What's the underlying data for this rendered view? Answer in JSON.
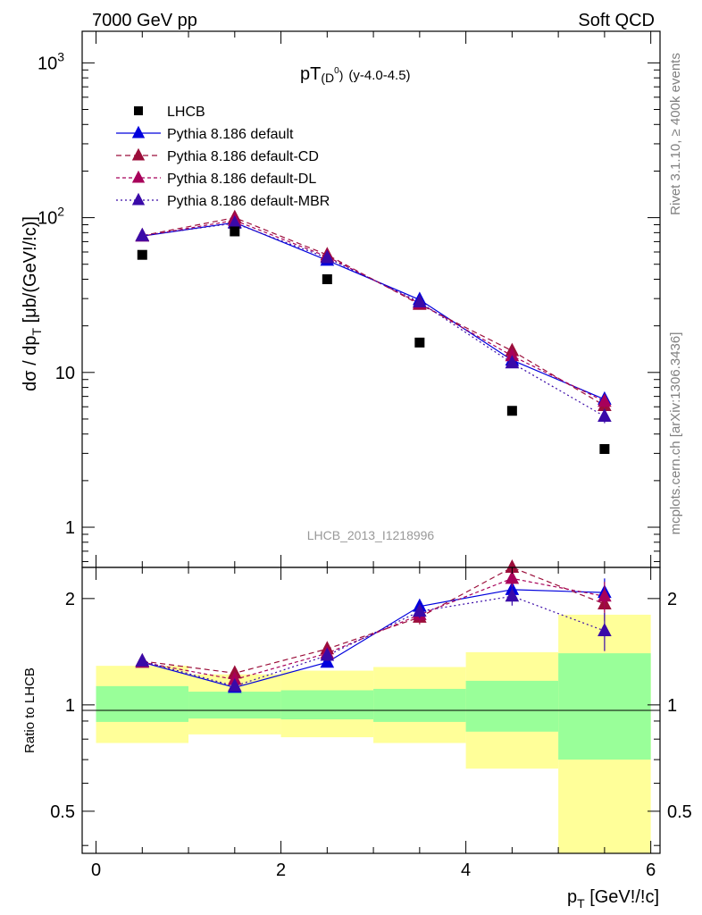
{
  "header": {
    "left": "7000 GeV pp",
    "right": "Soft QCD"
  },
  "side_labels": {
    "rivet": "Rivet 3.1.10, ≥ 400k events",
    "mcplots": "mcplots.cern.ch [arXiv:1306.3436]"
  },
  "watermark": "LHCB_2013_I1218996",
  "chart_data": [
    {
      "type": "scatter",
      "panel": "main",
      "title": "pT(D⁰) (y-4.0-4.5)",
      "title_main": "pT",
      "title_paren_open": "(D",
      "title_sup": "0",
      "title_paren_close": ")",
      "title_sub": "(y-4.0-4.5)",
      "ylabel": "dσ / dp_T [μb/(GeV!/!c)]",
      "ylabel_main": "dσ / dp",
      "ylabel_sub": "T",
      "ylabel_units": " [μb/(GeV!/!c)]",
      "yscale": "log",
      "ylim": [
        0.55,
        1600
      ],
      "xlim": [
        -0.15,
        6.1
      ],
      "y_ticks": [
        {
          "value": 1,
          "label": "1"
        },
        {
          "value": 10,
          "label": "10"
        },
        {
          "value": 100,
          "label": "10",
          "sup": "2"
        },
        {
          "value": 1000,
          "label": "10",
          "sup": "3"
        }
      ],
      "x": [
        0.5,
        1.5,
        2.5,
        3.5,
        4.5,
        5.5
      ],
      "data": {
        "name": "LHCB",
        "values": [
          57.5,
          81.5,
          40.0,
          15.6,
          5.65,
          3.2
        ]
      },
      "series": [
        {
          "name": "Pythia 8.186 default",
          "color": "#0000dd",
          "dash": "",
          "values": [
            76,
            93,
            53,
            29.5,
            12.0,
            6.7
          ],
          "errors": [
            1.5,
            2,
            1.5,
            1,
            0.8,
            0.6
          ]
        },
        {
          "name": "Pythia 8.186 default-CD",
          "color": "#9b0e3a",
          "dash": "6,4",
          "values": [
            76.5,
            100,
            57.5,
            27.5,
            13.8,
            6.1
          ],
          "errors": [
            1.5,
            2,
            1.5,
            1,
            0.9,
            0.6
          ]
        },
        {
          "name": "Pythia 8.186 default-DL",
          "color": "#a8005a",
          "dash": "4,3",
          "values": [
            76,
            96,
            56,
            28.0,
            12.8,
            6.5
          ],
          "errors": [
            1.5,
            2,
            1.5,
            1,
            0.9,
            0.6
          ]
        },
        {
          "name": "Pythia 8.186 default-MBR",
          "color": "#3a0aa8",
          "dash": "2,3",
          "values": [
            76.5,
            92,
            55,
            28.5,
            11.5,
            5.2
          ],
          "errors": [
            1.5,
            2,
            1.5,
            1,
            0.8,
            0.5
          ]
        }
      ],
      "legend_position": "top-left"
    },
    {
      "type": "scatter",
      "panel": "ratio",
      "ylabel": "Ratio to LHCB",
      "xlabel": "p_T [GeV!/!c]",
      "xlabel_main": "p",
      "xlabel_sub": "T",
      "xlabel_units": " [GeV!/!c]",
      "yscale": "log",
      "ylim": [
        0.38,
        2.45
      ],
      "xlim": [
        -0.15,
        6.1
      ],
      "x_ticks": [
        0,
        2,
        4,
        6
      ],
      "y_ticks": [
        {
          "value": 0.5,
          "label": "0.5"
        },
        {
          "value": 1,
          "label": "1"
        },
        {
          "value": 2,
          "label": "2"
        }
      ],
      "reference": 1,
      "bins": [
        {
          "x_low": 0,
          "x_high": 1,
          "band_stat": [
            0.895,
            1.13
          ],
          "band_total": [
            0.78,
            1.29
          ]
        },
        {
          "x_low": 1,
          "x_high": 2,
          "band_stat": [
            0.915,
            1.09
          ],
          "band_total": [
            0.825,
            1.22
          ]
        },
        {
          "x_low": 2,
          "x_high": 3,
          "band_stat": [
            0.91,
            1.1
          ],
          "band_total": [
            0.81,
            1.25
          ]
        },
        {
          "x_low": 3,
          "x_high": 4,
          "band_stat": [
            0.895,
            1.11
          ],
          "band_total": [
            0.78,
            1.28
          ]
        },
        {
          "x_low": 4,
          "x_high": 5,
          "band_stat": [
            0.84,
            1.17
          ],
          "band_total": [
            0.66,
            1.41
          ]
        },
        {
          "x_low": 5,
          "x_high": 6,
          "band_stat": [
            0.7,
            1.4
          ],
          "band_total": [
            0.0,
            1.8
          ]
        }
      ],
      "x": [
        0.5,
        1.5,
        2.5,
        3.5,
        4.5,
        5.5
      ],
      "series": [
        {
          "name": "Pythia 8.186 default",
          "values": [
            1.32,
            1.12,
            1.32,
            1.9,
            2.12,
            2.08
          ],
          "errors": [
            0.04,
            0.03,
            0.04,
            0.08,
            0.12,
            0.2
          ]
        },
        {
          "name": "Pythia 8.186 default-CD",
          "values": [
            1.33,
            1.23,
            1.44,
            1.77,
            2.45,
            1.93
          ],
          "errors": [
            0.04,
            0.03,
            0.04,
            0.08,
            0.12,
            0.2
          ]
        },
        {
          "name": "Pythia 8.186 default-DL",
          "values": [
            1.32,
            1.18,
            1.4,
            1.8,
            2.28,
            2.03
          ],
          "errors": [
            0.04,
            0.03,
            0.04,
            0.08,
            0.12,
            0.2
          ]
        },
        {
          "name": "Pythia 8.186 default-MBR",
          "values": [
            1.33,
            1.13,
            1.38,
            1.84,
            2.03,
            1.62
          ],
          "errors": [
            0.04,
            0.03,
            0.04,
            0.08,
            0.12,
            0.2
          ]
        }
      ]
    }
  ],
  "colors": {
    "band_total": "#ffff99",
    "band_stat": "#99ff99",
    "data_marker": "#000000",
    "axis": "#000000",
    "side_label": "#808080",
    "watermark": "#999999"
  }
}
